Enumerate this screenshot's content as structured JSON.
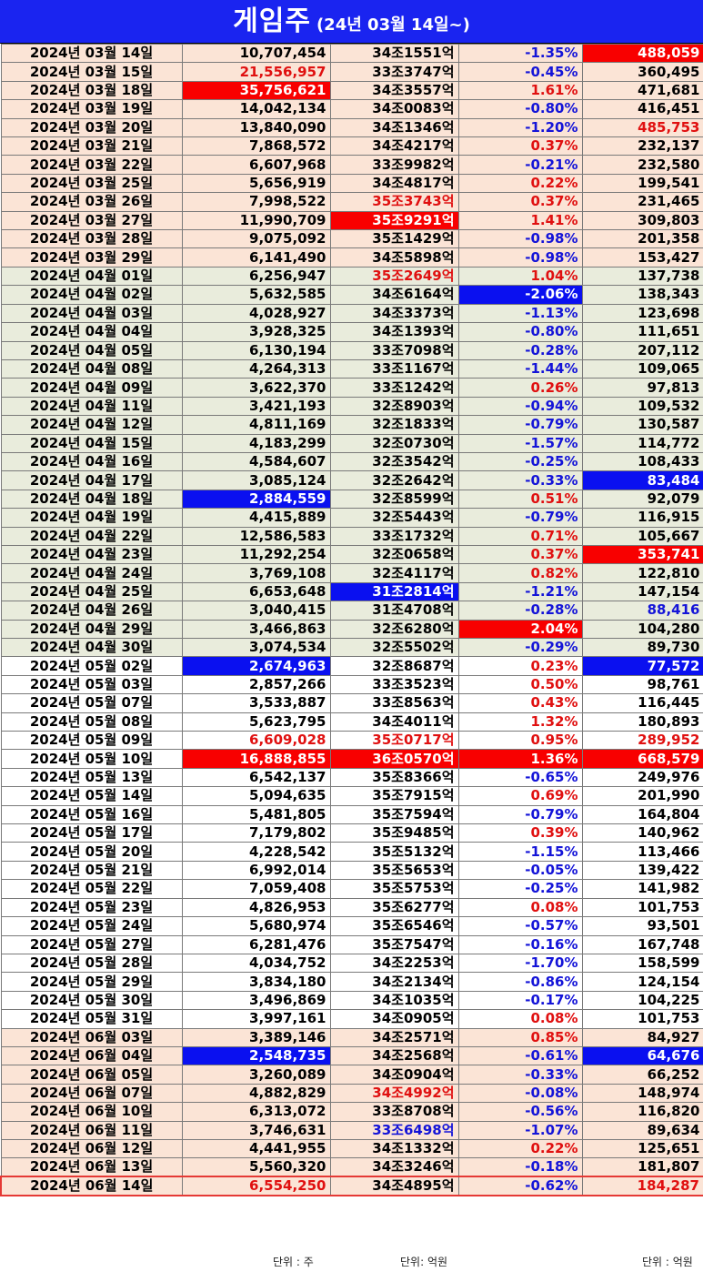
{
  "title": "게임주",
  "subtitle": "(24년 03월 14일~)",
  "colors": {
    "header_bg": "#1a24f0",
    "highlight_red": "#f80000",
    "highlight_blue": "#0a10f0",
    "negative_text": "#1414d8",
    "positive_text": "#e01010",
    "row_bg_peach": "#fbe4d6",
    "row_bg_olive": "#e9ecdc"
  },
  "units": {
    "volume": "단위 : 주",
    "market_cap": "단위: 억원",
    "amount": "단위 : 억원"
  },
  "rows": [
    {
      "date": "2024년 03월 14일",
      "volume": "10,707,454",
      "cap": "34조1551억",
      "change": "-1.35%",
      "amount": "488,059",
      "g": "a",
      "hl": {
        "amount": "red"
      }
    },
    {
      "date": "2024년 03월 15일",
      "volume": "21,556,957",
      "cap": "33조3747억",
      "change": "-0.45%",
      "amount": "360,495",
      "g": "a",
      "tc": {
        "volume": "red"
      }
    },
    {
      "date": "2024년 03월 18일",
      "volume": "35,756,621",
      "cap": "34조3557억",
      "change": "1.61%",
      "amount": "471,681",
      "g": "a",
      "hl": {
        "volume": "red"
      }
    },
    {
      "date": "2024년 03월 19일",
      "volume": "14,042,134",
      "cap": "34조0083억",
      "change": "-0.80%",
      "amount": "416,451",
      "g": "a"
    },
    {
      "date": "2024년 03월 20일",
      "volume": "13,840,090",
      "cap": "34조1346억",
      "change": "-1.20%",
      "amount": "485,753",
      "g": "a",
      "tc": {
        "amount": "red"
      }
    },
    {
      "date": "2024년 03월 21일",
      "volume": "7,868,572",
      "cap": "34조4217억",
      "change": "0.37%",
      "amount": "232,137",
      "g": "a"
    },
    {
      "date": "2024년 03월 22일",
      "volume": "6,607,968",
      "cap": "33조9982억",
      "change": "-0.21%",
      "amount": "232,580",
      "g": "a"
    },
    {
      "date": "2024년 03월 25일",
      "volume": "5,656,919",
      "cap": "34조4817억",
      "change": "0.22%",
      "amount": "199,541",
      "g": "a"
    },
    {
      "date": "2024년 03월 26일",
      "volume": "7,998,522",
      "cap": "35조3743억",
      "change": "0.37%",
      "amount": "231,465",
      "g": "a",
      "tc": {
        "cap": "red"
      }
    },
    {
      "date": "2024년 03월 27일",
      "volume": "11,990,709",
      "cap": "35조9291억",
      "change": "1.41%",
      "amount": "309,803",
      "g": "a",
      "hl": {
        "cap": "red"
      }
    },
    {
      "date": "2024년 03월 28일",
      "volume": "9,075,092",
      "cap": "35조1429억",
      "change": "-0.98%",
      "amount": "201,358",
      "g": "a"
    },
    {
      "date": "2024년 03월 29일",
      "volume": "6,141,490",
      "cap": "34조5898억",
      "change": "-0.98%",
      "amount": "153,427",
      "g": "a"
    },
    {
      "date": "2024년 04월 01일",
      "volume": "6,256,947",
      "cap": "35조2649억",
      "change": "1.04%",
      "amount": "137,738",
      "g": "b",
      "tc": {
        "cap": "red"
      }
    },
    {
      "date": "2024년 04월 02일",
      "volume": "5,632,585",
      "cap": "34조6164억",
      "change": "-2.06%",
      "amount": "138,343",
      "g": "b",
      "hl": {
        "change": "blue"
      }
    },
    {
      "date": "2024년 04월 03일",
      "volume": "4,028,927",
      "cap": "34조3373억",
      "change": "-1.13%",
      "amount": "123,698",
      "g": "b"
    },
    {
      "date": "2024년 04월 04일",
      "volume": "3,928,325",
      "cap": "34조1393억",
      "change": "-0.80%",
      "amount": "111,651",
      "g": "b"
    },
    {
      "date": "2024년 04월 05일",
      "volume": "6,130,194",
      "cap": "33조7098억",
      "change": "-0.28%",
      "amount": "207,112",
      "g": "b"
    },
    {
      "date": "2024년 04월 08일",
      "volume": "4,264,313",
      "cap": "33조1167억",
      "change": "-1.44%",
      "amount": "109,065",
      "g": "b"
    },
    {
      "date": "2024년 04월 09일",
      "volume": "3,622,370",
      "cap": "33조1242억",
      "change": "0.26%",
      "amount": "97,813",
      "g": "b"
    },
    {
      "date": "2024년 04월 11일",
      "volume": "3,421,193",
      "cap": "32조8903억",
      "change": "-0.94%",
      "amount": "109,532",
      "g": "b"
    },
    {
      "date": "2024년 04월 12일",
      "volume": "4,811,169",
      "cap": "32조1833억",
      "change": "-0.79%",
      "amount": "130,587",
      "g": "b"
    },
    {
      "date": "2024년 04월 15일",
      "volume": "4,183,299",
      "cap": "32조0730억",
      "change": "-1.57%",
      "amount": "114,772",
      "g": "b"
    },
    {
      "date": "2024년 04월 16일",
      "volume": "4,584,607",
      "cap": "32조3542억",
      "change": "-0.25%",
      "amount": "108,433",
      "g": "b"
    },
    {
      "date": "2024년 04월 17일",
      "volume": "3,085,124",
      "cap": "32조2642억",
      "change": "-0.33%",
      "amount": "83,484",
      "g": "b",
      "hl": {
        "amount": "blue"
      }
    },
    {
      "date": "2024년 04월 18일",
      "volume": "2,884,559",
      "cap": "32조8599억",
      "change": "0.51%",
      "amount": "92,079",
      "g": "b",
      "hl": {
        "volume": "blue"
      }
    },
    {
      "date": "2024년 04월 19일",
      "volume": "4,415,889",
      "cap": "32조5443억",
      "change": "-0.79%",
      "amount": "116,915",
      "g": "b"
    },
    {
      "date": "2024년 04월 22일",
      "volume": "12,586,583",
      "cap": "33조1732억",
      "change": "0.71%",
      "amount": "105,667",
      "g": "b"
    },
    {
      "date": "2024년 04월 23일",
      "volume": "11,292,254",
      "cap": "32조0658억",
      "change": "0.37%",
      "amount": "353,741",
      "g": "b",
      "hl": {
        "amount": "red"
      }
    },
    {
      "date": "2024년 04월 24일",
      "volume": "3,769,108",
      "cap": "32조4117억",
      "change": "0.82%",
      "amount": "122,810",
      "g": "b"
    },
    {
      "date": "2024년 04월 25일",
      "volume": "6,653,648",
      "cap": "31조2814억",
      "change": "-1.21%",
      "amount": "147,154",
      "g": "b",
      "hl": {
        "cap": "blue"
      }
    },
    {
      "date": "2024년 04월 26일",
      "volume": "3,040,415",
      "cap": "31조4708억",
      "change": "-0.28%",
      "amount": "88,416",
      "g": "b",
      "tc": {
        "amount": "blue"
      }
    },
    {
      "date": "2024년 04월 29일",
      "volume": "3,466,863",
      "cap": "32조6280억",
      "change": "2.04%",
      "amount": "104,280",
      "g": "b",
      "hl": {
        "change": "red"
      }
    },
    {
      "date": "2024년 04월 30일",
      "volume": "3,074,534",
      "cap": "32조5502억",
      "change": "-0.29%",
      "amount": "89,730",
      "g": "b"
    },
    {
      "date": "2024년 05월 02일",
      "volume": "2,674,963",
      "cap": "32조8687억",
      "change": "0.23%",
      "amount": "77,572",
      "g": "c",
      "hl": {
        "volume": "blue",
        "amount": "blue"
      }
    },
    {
      "date": "2024년 05월 03일",
      "volume": "2,857,266",
      "cap": "33조3523억",
      "change": "0.50%",
      "amount": "98,761",
      "g": "c"
    },
    {
      "date": "2024년 05월 07일",
      "volume": "3,533,887",
      "cap": "33조8563억",
      "change": "0.43%",
      "amount": "116,445",
      "g": "c"
    },
    {
      "date": "2024년 05월 08일",
      "volume": "5,623,795",
      "cap": "34조4011억",
      "change": "1.32%",
      "amount": "180,893",
      "g": "c"
    },
    {
      "date": "2024년 05월 09일",
      "volume": "6,609,028",
      "cap": "35조0717억",
      "change": "0.95%",
      "amount": "289,952",
      "g": "c",
      "tc": {
        "volume": "red",
        "cap": "red",
        "amount": "red"
      }
    },
    {
      "date": "2024년 05월 10일",
      "volume": "16,888,855",
      "cap": "36조0570억",
      "change": "1.36%",
      "amount": "668,579",
      "g": "c",
      "hl": {
        "volume": "red",
        "cap": "red",
        "change": "red",
        "amount": "red"
      }
    },
    {
      "date": "2024년 05월 13일",
      "volume": "6,542,137",
      "cap": "35조8366억",
      "change": "-0.65%",
      "amount": "249,976",
      "g": "c"
    },
    {
      "date": "2024년 05월 14일",
      "volume": "5,094,635",
      "cap": "35조7915억",
      "change": "0.69%",
      "amount": "201,990",
      "g": "c"
    },
    {
      "date": "2024년 05월 16일",
      "volume": "5,481,805",
      "cap": "35조7594억",
      "change": "-0.79%",
      "amount": "164,804",
      "g": "c"
    },
    {
      "date": "2024년 05월 17일",
      "volume": "7,179,802",
      "cap": "35조9485억",
      "change": "0.39%",
      "amount": "140,962",
      "g": "c"
    },
    {
      "date": "2024년 05월 20일",
      "volume": "4,228,542",
      "cap": "35조5132억",
      "change": "-1.15%",
      "amount": "113,466",
      "g": "c"
    },
    {
      "date": "2024년 05월 21일",
      "volume": "6,992,014",
      "cap": "35조5653억",
      "change": "-0.05%",
      "amount": "139,422",
      "g": "c"
    },
    {
      "date": "2024년 05월 22일",
      "volume": "7,059,408",
      "cap": "35조5753억",
      "change": "-0.25%",
      "amount": "141,982",
      "g": "c"
    },
    {
      "date": "2024년 05월 23일",
      "volume": "4,826,953",
      "cap": "35조6277억",
      "change": "0.08%",
      "amount": "101,753",
      "g": "c"
    },
    {
      "date": "2024년 05월 24일",
      "volume": "5,680,974",
      "cap": "35조6546억",
      "change": "-0.57%",
      "amount": "93,501",
      "g": "c"
    },
    {
      "date": "2024년 05월 27일",
      "volume": "6,281,476",
      "cap": "35조7547억",
      "change": "-0.16%",
      "amount": "167,748",
      "g": "c"
    },
    {
      "date": "2024년 05월 28일",
      "volume": "4,034,752",
      "cap": "34조2253억",
      "change": "-1.70%",
      "amount": "158,599",
      "g": "c"
    },
    {
      "date": "2024년 05월 29일",
      "volume": "3,834,180",
      "cap": "34조2134억",
      "change": "-0.86%",
      "amount": "124,154",
      "g": "c"
    },
    {
      "date": "2024년 05월 30일",
      "volume": "3,496,869",
      "cap": "34조1035억",
      "change": "-0.17%",
      "amount": "104,225",
      "g": "c"
    },
    {
      "date": "2024년 05월 31일",
      "volume": "3,997,161",
      "cap": "34조0905억",
      "change": "0.08%",
      "amount": "101,753",
      "g": "c"
    },
    {
      "date": "2024년 06월 03일",
      "volume": "3,389,146",
      "cap": "34조2571억",
      "change": "0.85%",
      "amount": "84,927",
      "g": "a"
    },
    {
      "date": "2024년 06월 04일",
      "volume": "2,548,735",
      "cap": "34조2568억",
      "change": "-0.61%",
      "amount": "64,676",
      "g": "a",
      "hl": {
        "volume": "blue",
        "amount": "blue"
      }
    },
    {
      "date": "2024년 06월 05일",
      "volume": "3,260,089",
      "cap": "34조0904억",
      "change": "-0.33%",
      "amount": "66,252",
      "g": "a"
    },
    {
      "date": "2024년 06월 07일",
      "volume": "4,882,829",
      "cap": "34조4992억",
      "change": "-0.08%",
      "amount": "148,974",
      "g": "a",
      "tc": {
        "cap": "red"
      }
    },
    {
      "date": "2024년 06월 10일",
      "volume": "6,313,072",
      "cap": "33조8708억",
      "change": "-0.56%",
      "amount": "116,820",
      "g": "a"
    },
    {
      "date": "2024년 06월 11일",
      "volume": "3,746,631",
      "cap": "33조6498억",
      "change": "-1.07%",
      "amount": "89,634",
      "g": "a",
      "tc": {
        "cap": "blue"
      }
    },
    {
      "date": "2024년 06월 12일",
      "volume": "4,441,955",
      "cap": "34조1332억",
      "change": "0.22%",
      "amount": "125,651",
      "g": "a"
    },
    {
      "date": "2024년 06월 13일",
      "volume": "5,560,320",
      "cap": "34조3246억",
      "change": "-0.18%",
      "amount": "181,807",
      "g": "a"
    },
    {
      "date": "2024년 06월 14일",
      "volume": "6,554,250",
      "cap": "34조4895억",
      "change": "-0.62%",
      "amount": "184,287",
      "g": "a",
      "tc": {
        "volume": "red",
        "amount": "red"
      },
      "last": true
    }
  ]
}
